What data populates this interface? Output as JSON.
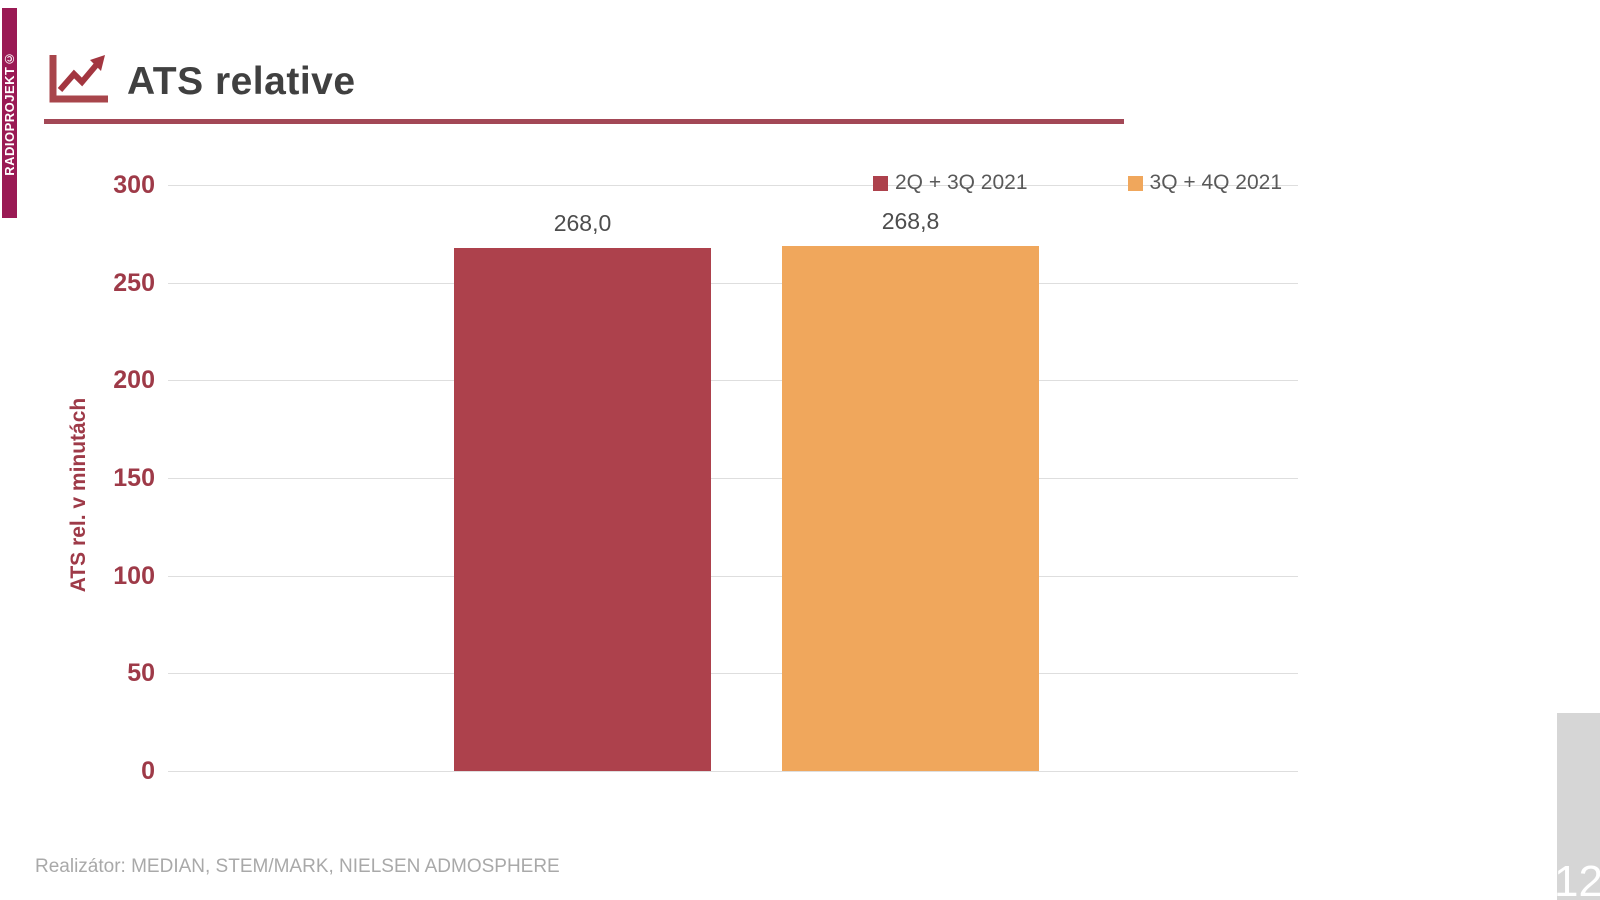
{
  "sidebar": {
    "brand": "RADIOPROJEKT©"
  },
  "header": {
    "title": "ATS relative",
    "icon": "line-chart-icon"
  },
  "chart_data": {
    "type": "bar",
    "title": "ATS relative",
    "categories": [
      "ATS relative"
    ],
    "series": [
      {
        "name": "2Q + 3Q 2021",
        "values": [
          268.0
        ],
        "value_labels": [
          "268,0"
        ],
        "color": "#AD414C"
      },
      {
        "name": "3Q + 4Q 2021",
        "values": [
          268.8
        ],
        "value_labels": [
          "268,8"
        ],
        "color": "#F0A75C"
      }
    ],
    "xlabel": "",
    "ylabel": "ATS rel. v minutách",
    "ylim": [
      0,
      300
    ],
    "yticks": [
      0,
      50,
      100,
      150,
      200,
      250,
      300
    ],
    "grid": true,
    "legend_position": "top-right",
    "value_label_format": "decimal-comma"
  },
  "footer": {
    "source": "Realizátor: MEDIAN, STEM/MARK, NIELSEN ADMOSPHERE",
    "page_number": "12"
  },
  "colors": {
    "brand_bar": "#9A1A54",
    "title_rule": "#A34856",
    "axis_maroon": "#9E3A48",
    "bar_red": "#AD414C",
    "bar_orange": "#F0A75C",
    "gridline": "#DEDEDE",
    "page_box": "#D6D6D6"
  }
}
